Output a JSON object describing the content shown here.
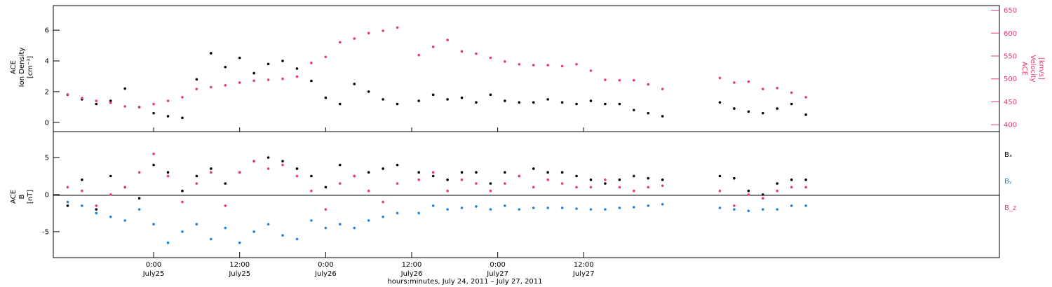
{
  "chart_data": [
    {
      "type": "scatter",
      "panel": "top",
      "ylabel_left": [
        "ACE",
        "Ion Density",
        "[cm⁻³]"
      ],
      "ylabel_right": [
        "ACE",
        "Velocity",
        "[km/s]"
      ],
      "ylim_left": [
        -0.6,
        7.6
      ],
      "yticks_left": [
        "0",
        "2",
        "4",
        "6"
      ],
      "ylim_right": [
        385,
        660
      ],
      "yticks_right": [
        "400",
        "450",
        "500",
        "550",
        "600",
        "650"
      ],
      "grid": false,
      "series": [
        {
          "axis": "left",
          "color": "#000000",
          "x": [
            0,
            2,
            4,
            6,
            8,
            10,
            12,
            14,
            16,
            18,
            20,
            22,
            24,
            26,
            28,
            30,
            32,
            34,
            36,
            38,
            40,
            42,
            44,
            46,
            49,
            51,
            53,
            55,
            57,
            59,
            61,
            63,
            65,
            67,
            69,
            71,
            73,
            75,
            77,
            79,
            81,
            83,
            91,
            93,
            95,
            97,
            99,
            101,
            103
          ],
          "y": [
            1.8,
            1.5,
            1.2,
            1.4,
            2.2,
            1.0,
            0.6,
            0.4,
            0.3,
            2.8,
            4.5,
            3.6,
            4.2,
            3.2,
            3.8,
            4.0,
            3.5,
            2.7,
            1.6,
            1.2,
            2.5,
            2.0,
            1.5,
            1.2,
            1.4,
            1.8,
            1.5,
            1.6,
            1.3,
            1.8,
            1.4,
            1.3,
            1.3,
            1.5,
            1.3,
            1.2,
            1.4,
            1.2,
            1.2,
            0.8,
            0.6,
            0.4,
            1.3,
            0.9,
            0.7,
            0.6,
            0.9,
            1.2,
            0.5
          ]
        },
        {
          "axis": "right",
          "color": "#e63c6c",
          "x": [
            0,
            2,
            4,
            6,
            8,
            10,
            12,
            14,
            16,
            18,
            20,
            22,
            24,
            26,
            28,
            30,
            32,
            34,
            36,
            38,
            40,
            42,
            44,
            46,
            49,
            51,
            53,
            55,
            57,
            59,
            61,
            63,
            65,
            67,
            69,
            71,
            73,
            75,
            77,
            79,
            81,
            83,
            91,
            93,
            95,
            97,
            99,
            101,
            103
          ],
          "y": [
            466,
            458,
            452,
            448,
            440,
            438,
            445,
            452,
            460,
            478,
            482,
            486,
            492,
            496,
            498,
            500,
            505,
            535,
            548,
            580,
            588,
            600,
            605,
            612,
            552,
            570,
            585,
            560,
            555,
            546,
            538,
            532,
            530,
            530,
            528,
            532,
            518,
            498,
            497,
            497,
            488,
            478,
            502,
            492,
            494,
            478,
            480,
            470,
            460
          ]
        }
      ]
    },
    {
      "type": "scatter",
      "panel": "bottom",
      "ylabel_left": [
        "ACE",
        "B",
        "[nT]"
      ],
      "ylim": [
        -8.5,
        8.5
      ],
      "yticks": [
        "-5",
        "0",
        "5"
      ],
      "zero_line": true,
      "legend": [
        "Bₓ",
        "Bᵧ",
        "B_z"
      ],
      "legend_placement": "right",
      "grid": false,
      "x_range": [
        -2,
        130
      ],
      "xticks": [
        {
          "x": 12,
          "label": [
            "0:00",
            "July25"
          ]
        },
        {
          "x": 24,
          "label": [
            "12:00",
            "July25"
          ]
        },
        {
          "x": 36,
          "label": [
            "0:00",
            "July26"
          ]
        },
        {
          "x": 48,
          "label": [
            "12:00",
            "July26"
          ]
        },
        {
          "x": 60,
          "label": [
            "0:00",
            "July27"
          ]
        },
        {
          "x": 72,
          "label": [
            "12:00",
            "July27"
          ]
        }
      ],
      "xlabel": "hours:minutes, July 24, 2011 – July 27, 2011",
      "series": [
        {
          "name": "Bₓ",
          "color": "#000000",
          "x": [
            0,
            2,
            4,
            6,
            8,
            10,
            12,
            14,
            16,
            18,
            20,
            22,
            24,
            26,
            28,
            30,
            32,
            34,
            36,
            38,
            40,
            42,
            44,
            46,
            49,
            51,
            53,
            55,
            57,
            59,
            61,
            63,
            65,
            67,
            69,
            71,
            73,
            75,
            77,
            79,
            81,
            83,
            91,
            93,
            95,
            97,
            99,
            101,
            103
          ],
          "y": [
            -1.5,
            2.0,
            -2.0,
            2.5,
            1.0,
            -0.5,
            4.0,
            3.0,
            0.5,
            2.5,
            3.5,
            1.5,
            3.0,
            4.5,
            5.0,
            4.5,
            3.5,
            2.5,
            1.0,
            4.0,
            2.5,
            3.0,
            3.5,
            4.0,
            3.0,
            2.5,
            2.0,
            3.0,
            3.0,
            1.5,
            3.0,
            2.5,
            3.5,
            3.0,
            3.0,
            2.5,
            2.0,
            1.5,
            2.0,
            2.5,
            2.2,
            2.0,
            2.5,
            2.2,
            0.5,
            0.0,
            1.5,
            2.0,
            2.0
          ]
        },
        {
          "name": "Bᵧ",
          "color": "#1f84e0",
          "x": [
            0,
            2,
            4,
            6,
            8,
            10,
            12,
            14,
            16,
            18,
            20,
            22,
            24,
            26,
            28,
            30,
            32,
            34,
            36,
            38,
            40,
            42,
            44,
            46,
            49,
            51,
            53,
            55,
            57,
            59,
            61,
            63,
            65,
            67,
            69,
            71,
            73,
            75,
            77,
            79,
            81,
            83,
            91,
            93,
            95,
            97,
            99,
            101,
            103
          ],
          "y": [
            -1.0,
            -1.5,
            -2.5,
            -3.0,
            -3.5,
            -2.0,
            -4.0,
            -6.5,
            -5.0,
            -4.0,
            -6.0,
            -4.5,
            -6.5,
            -5.0,
            -4.0,
            -5.5,
            -6.0,
            -3.5,
            -4.5,
            -4.0,
            -4.5,
            -3.5,
            -3.0,
            -2.5,
            -2.5,
            -1.5,
            -2.0,
            -1.8,
            -1.6,
            -2.0,
            -1.5,
            -2.0,
            -1.8,
            -1.8,
            -1.8,
            -1.9,
            -2.0,
            -2.0,
            -1.8,
            -1.7,
            -1.5,
            -1.3,
            -1.8,
            -2.0,
            -2.2,
            -2.0,
            -2.0,
            -1.5,
            -1.5
          ]
        },
        {
          "name": "B_z",
          "color": "#e63c6c",
          "x": [
            0,
            2,
            4,
            6,
            8,
            10,
            12,
            14,
            16,
            18,
            20,
            22,
            24,
            26,
            28,
            30,
            32,
            34,
            36,
            38,
            40,
            42,
            44,
            46,
            49,
            51,
            53,
            55,
            57,
            59,
            61,
            63,
            65,
            67,
            69,
            71,
            73,
            75,
            77,
            79,
            81,
            83,
            91,
            93,
            95,
            97,
            99,
            101,
            103
          ],
          "y": [
            1.0,
            0.5,
            -1.5,
            0.0,
            1.0,
            3.0,
            5.5,
            2.5,
            -1.0,
            1.5,
            3.0,
            -1.5,
            3.0,
            4.5,
            3.5,
            4.0,
            2.5,
            0.5,
            -2.0,
            1.5,
            2.5,
            0.5,
            -1.0,
            1.5,
            2.0,
            3.0,
            0.5,
            2.0,
            1.5,
            0.5,
            1.5,
            2.5,
            1.0,
            2.0,
            1.5,
            1.0,
            1.0,
            2.0,
            1.0,
            0.5,
            1.0,
            1.2,
            0.5,
            -1.5,
            0.0,
            -0.5,
            0.5,
            1.0,
            1.0
          ]
        }
      ]
    }
  ]
}
